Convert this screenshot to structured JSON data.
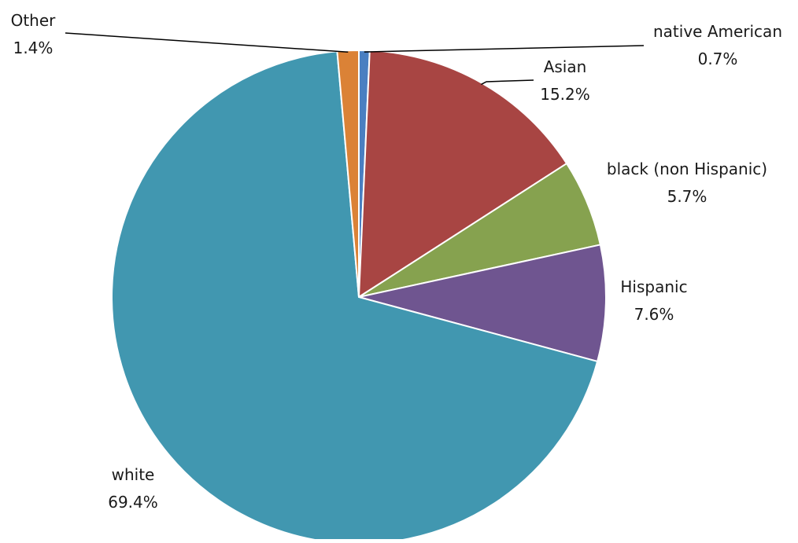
{
  "chart_data": {
    "type": "pie",
    "title": "",
    "slices": [
      {
        "label": "native American",
        "value_label": "0.7%",
        "value": 0.7,
        "color": "#4a7fc1"
      },
      {
        "label": "Asian",
        "value_label": "15.2%",
        "value": 15.2,
        "color": "#a84543"
      },
      {
        "label": "black (non Hispanic)",
        "value_label": "5.7%",
        "value": 5.7,
        "color": "#86a24f"
      },
      {
        "label": "Hispanic",
        "value_label": "7.6%",
        "value": 7.6,
        "color": "#6f5590"
      },
      {
        "label": "white",
        "value_label": "69.4%",
        "value": 69.4,
        "color": "#4197b0"
      },
      {
        "label": "Other",
        "value_label": "1.4%",
        "value": 1.4,
        "color": "#db8236"
      }
    ]
  }
}
